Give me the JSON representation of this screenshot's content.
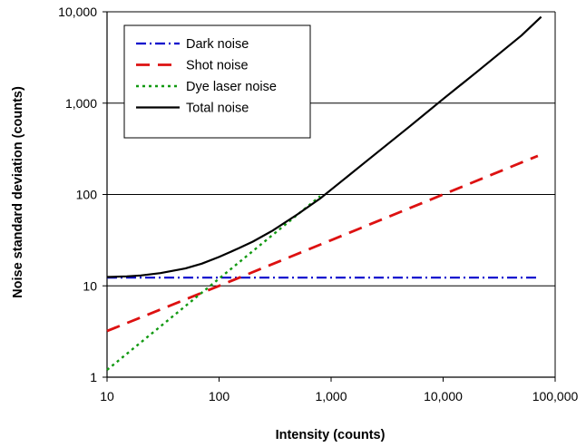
{
  "chart_data": {
    "type": "line",
    "title": "",
    "xlabel": "Intensity (counts)",
    "ylabel": "Noise standard deviation (counts)",
    "xscale": "log",
    "yscale": "log",
    "xlim": [
      10,
      100000
    ],
    "ylim": [
      1,
      10000
    ],
    "x_ticks": [
      "10",
      "100",
      "1,000",
      "10,000",
      "100,000"
    ],
    "y_ticks": [
      "1",
      "10",
      "100",
      "1,000",
      "10,000"
    ],
    "grid": "horizontal",
    "legend_position": "top-left",
    "series": [
      {
        "name": "Dark noise",
        "color": "#0000cc",
        "style": "dash-dot",
        "x": [
          10,
          70000
        ],
        "y": [
          12.3,
          12.3
        ]
      },
      {
        "name": "Shot noise",
        "color": "#dd1111",
        "style": "dashed",
        "x": [
          10,
          100,
          1000,
          10000,
          70000
        ],
        "y": [
          3.2,
          10,
          31.6,
          100,
          265
        ]
      },
      {
        "name": "Dye laser noise",
        "color": "#119911",
        "style": "dotted",
        "x": [
          10,
          100,
          800
        ],
        "y": [
          1.2,
          12,
          96
        ]
      },
      {
        "name": "Total noise",
        "color": "#000000",
        "style": "solid",
        "x": [
          10,
          15,
          20,
          30,
          50,
          70,
          100,
          150,
          200,
          300,
          500,
          800,
          1000,
          2000,
          5000,
          10000,
          20000,
          50000,
          75000
        ],
        "y": [
          12.5,
          12.7,
          13.0,
          13.8,
          15.5,
          17.5,
          20.7,
          25.8,
          30.5,
          40.2,
          60.5,
          90.5,
          113,
          224,
          553,
          1110,
          2200,
          5500,
          8800
        ]
      }
    ]
  }
}
